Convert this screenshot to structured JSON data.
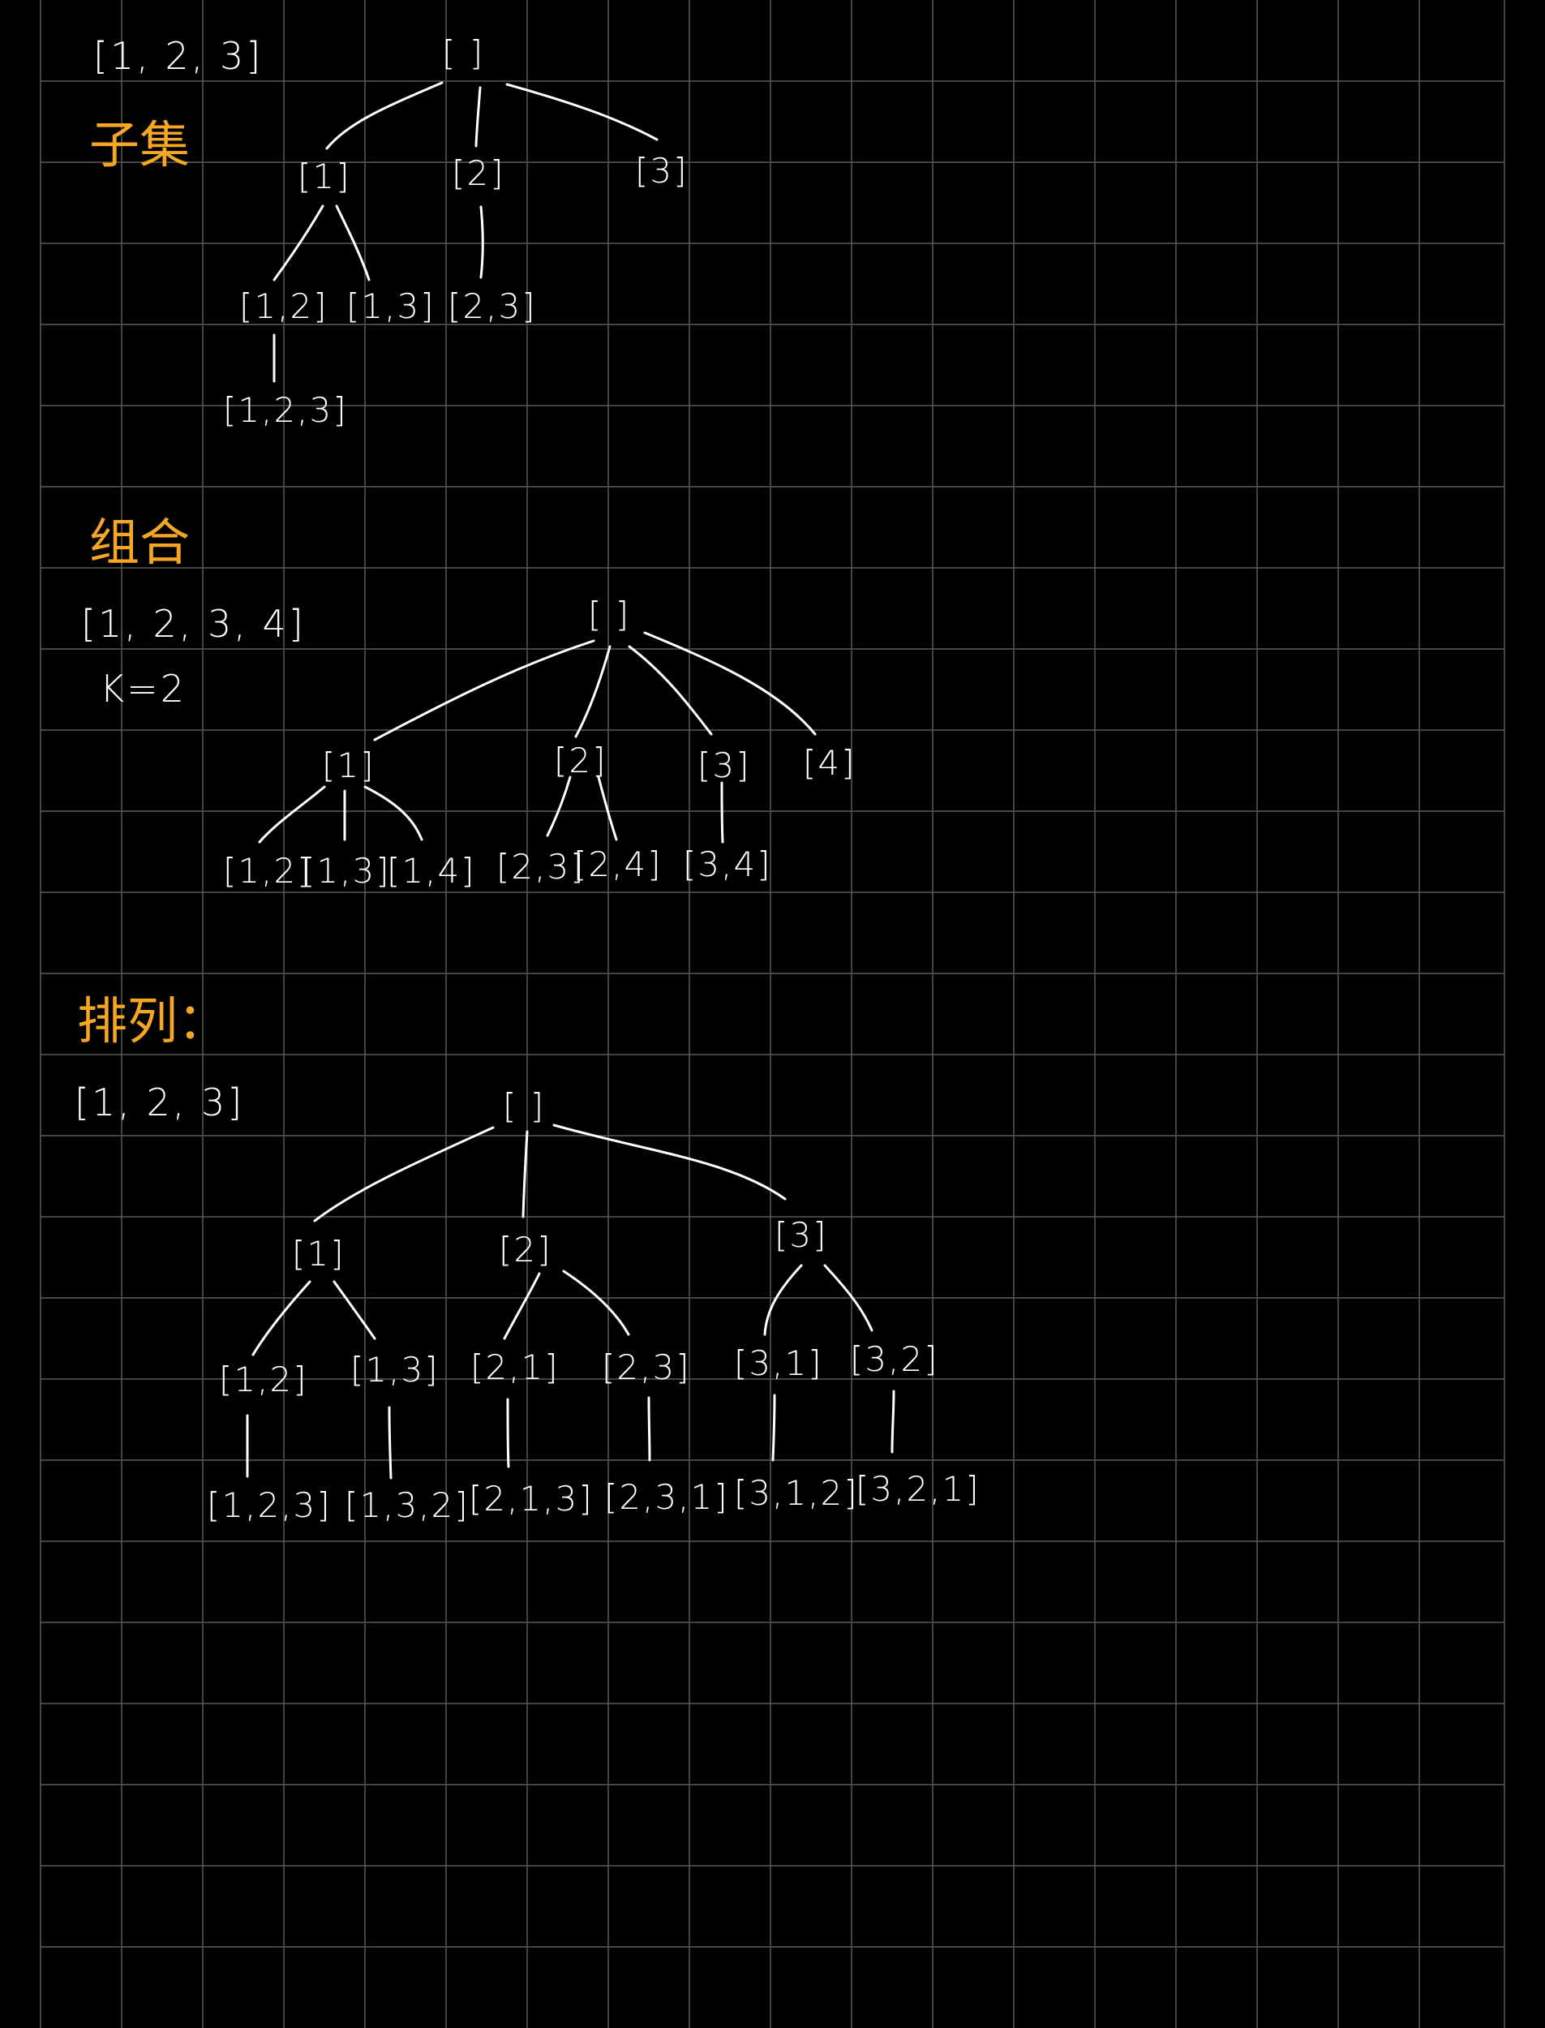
{
  "colors": {
    "background": "#000000",
    "grid": "#5a5a5a",
    "ink": "#ffffff",
    "heading": "#f5a623"
  },
  "sections": {
    "subsets": {
      "input": "[1, 2, 3]",
      "heading": "子集",
      "nodes": {
        "root": "[ ]",
        "n1": "[1]",
        "n2": "[2]",
        "n3": "[3]",
        "n12": "[1,2]",
        "n13": "[1,3]",
        "n23": "[2,3]",
        "n123": "[1,2,3]"
      }
    },
    "combinations": {
      "heading": "组合",
      "input": "[1, 2, 3, 4]",
      "k": "K=2",
      "nodes": {
        "root": "[ ]",
        "n1": "[1]",
        "n2": "[2]",
        "n3": "[3]",
        "n4": "[4]",
        "n12": "[1,2]",
        "n13": "[1,3]",
        "n14": "[1,4]",
        "n23": "[2,3]",
        "n24": "[2,4]",
        "n34": "[3,4]"
      }
    },
    "permutations": {
      "heading": "排列：",
      "input": "[1, 2, 3]",
      "nodes": {
        "root": "[ ]",
        "n1": "[1]",
        "n2": "[2]",
        "n3": "[3]",
        "n12": "[1,2]",
        "n13": "[1,3]",
        "n21": "[2,1]",
        "n23": "[2,3]",
        "n31": "[3,1]",
        "n32": "[3,2]",
        "n123": "[1,2,3]",
        "n132": "[1,3,2]",
        "n213": "[2,1,3]",
        "n231": "[2,3,1]",
        "n312": "[3,1,2]",
        "n321": "[3,2,1]"
      }
    }
  }
}
